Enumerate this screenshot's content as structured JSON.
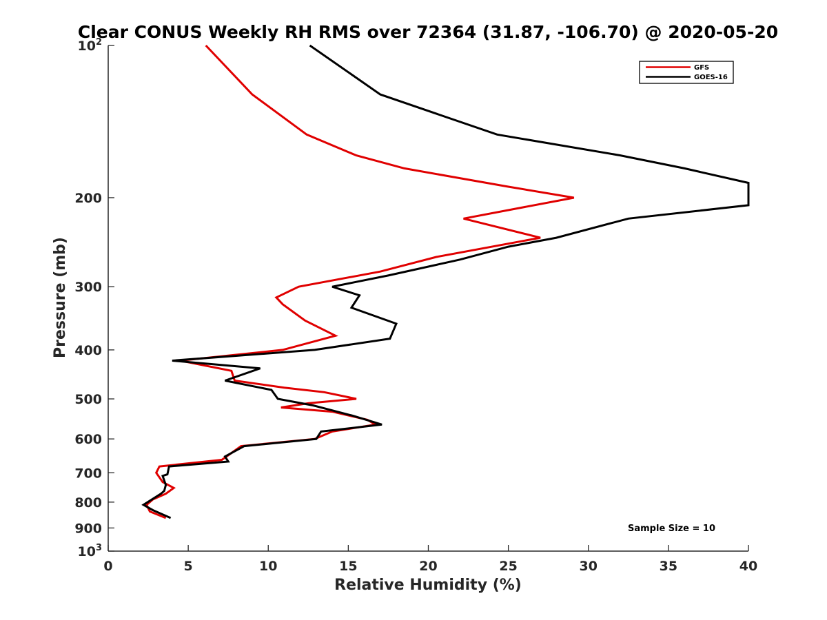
{
  "chart_data": {
    "type": "line",
    "title": "Clear CONUS Weekly RH RMS over 72364 (31.87, -106.70) @ 2020-05-20",
    "xlabel": "Relative Humidity (%)",
    "ylabel": "Pressure (mb)",
    "xlim": [
      0,
      40
    ],
    "ylim": [
      100,
      1000
    ],
    "y_scale": "log",
    "y_reversed": true,
    "grid": false,
    "legend_position": "top-right",
    "x_ticks": [
      0,
      5,
      10,
      15,
      20,
      25,
      30,
      35,
      40
    ],
    "y_ticks": [
      {
        "value": 100,
        "base": "10",
        "exp": "2"
      },
      {
        "value": 200,
        "label": "200"
      },
      {
        "value": 300,
        "label": "300"
      },
      {
        "value": 400,
        "label": "400"
      },
      {
        "value": 500,
        "label": "500"
      },
      {
        "value": 600,
        "label": "600"
      },
      {
        "value": 700,
        "label": "700"
      },
      {
        "value": 800,
        "label": "800"
      },
      {
        "value": 900,
        "label": "900"
      },
      {
        "value": 1000,
        "base": "10",
        "exp": "3"
      }
    ],
    "annotation": "Sample Size = 10",
    "series": [
      {
        "name": "GFS",
        "color": "#e00000",
        "points": [
          [
            6.1,
            100
          ],
          [
            9.0,
            125
          ],
          [
            12.4,
            150
          ],
          [
            15.5,
            165
          ],
          [
            18.5,
            175
          ],
          [
            24.9,
            190
          ],
          [
            29.1,
            200
          ],
          [
            22.2,
            220
          ],
          [
            27.0,
            240
          ],
          [
            20.5,
            262
          ],
          [
            17.0,
            280
          ],
          [
            11.9,
            300
          ],
          [
            10.5,
            315
          ],
          [
            10.9,
            325
          ],
          [
            12.3,
            350
          ],
          [
            14.2,
            375
          ],
          [
            10.9,
            400
          ],
          [
            4.5,
            420
          ],
          [
            7.7,
            440
          ],
          [
            7.9,
            460
          ],
          [
            11.0,
            475
          ],
          [
            13.5,
            485
          ],
          [
            15.5,
            500
          ],
          [
            12.5,
            510
          ],
          [
            10.8,
            520
          ],
          [
            14.0,
            530
          ],
          [
            16.2,
            550
          ],
          [
            16.7,
            562
          ],
          [
            14.0,
            580
          ],
          [
            12.9,
            600
          ],
          [
            8.3,
            620
          ],
          [
            7.1,
            660
          ],
          [
            3.2,
            680
          ],
          [
            3.0,
            700
          ],
          [
            3.4,
            730
          ],
          [
            4.1,
            750
          ],
          [
            3.6,
            770
          ],
          [
            2.8,
            790
          ],
          [
            2.4,
            810
          ],
          [
            2.6,
            835
          ],
          [
            3.6,
            860
          ]
        ]
      },
      {
        "name": "GOES-16",
        "color": "#000000",
        "points": [
          [
            12.6,
            100
          ],
          [
            17.0,
            125
          ],
          [
            24.3,
            150
          ],
          [
            32.0,
            165
          ],
          [
            36.0,
            175
          ],
          [
            40.0,
            187
          ],
          [
            40.0,
            207
          ],
          [
            32.5,
            220
          ],
          [
            28.0,
            240
          ],
          [
            25.0,
            250
          ],
          [
            22.0,
            265
          ],
          [
            17.5,
            285
          ],
          [
            14.0,
            300
          ],
          [
            15.7,
            312
          ],
          [
            15.2,
            330
          ],
          [
            18.0,
            355
          ],
          [
            17.6,
            380
          ],
          [
            12.9,
            400
          ],
          [
            4.0,
            420
          ],
          [
            9.5,
            435
          ],
          [
            7.3,
            460
          ],
          [
            10.2,
            480
          ],
          [
            10.6,
            500
          ],
          [
            12.8,
            515
          ],
          [
            15.3,
            540
          ],
          [
            17.1,
            562
          ],
          [
            13.3,
            580
          ],
          [
            13.0,
            600
          ],
          [
            8.5,
            620
          ],
          [
            7.3,
            650
          ],
          [
            7.5,
            665
          ],
          [
            3.8,
            680
          ],
          [
            3.7,
            705
          ],
          [
            3.4,
            710
          ],
          [
            3.6,
            740
          ],
          [
            3.5,
            760
          ],
          [
            3.3,
            770
          ],
          [
            2.2,
            810
          ],
          [
            2.8,
            830
          ],
          [
            3.9,
            860
          ]
        ]
      }
    ]
  }
}
